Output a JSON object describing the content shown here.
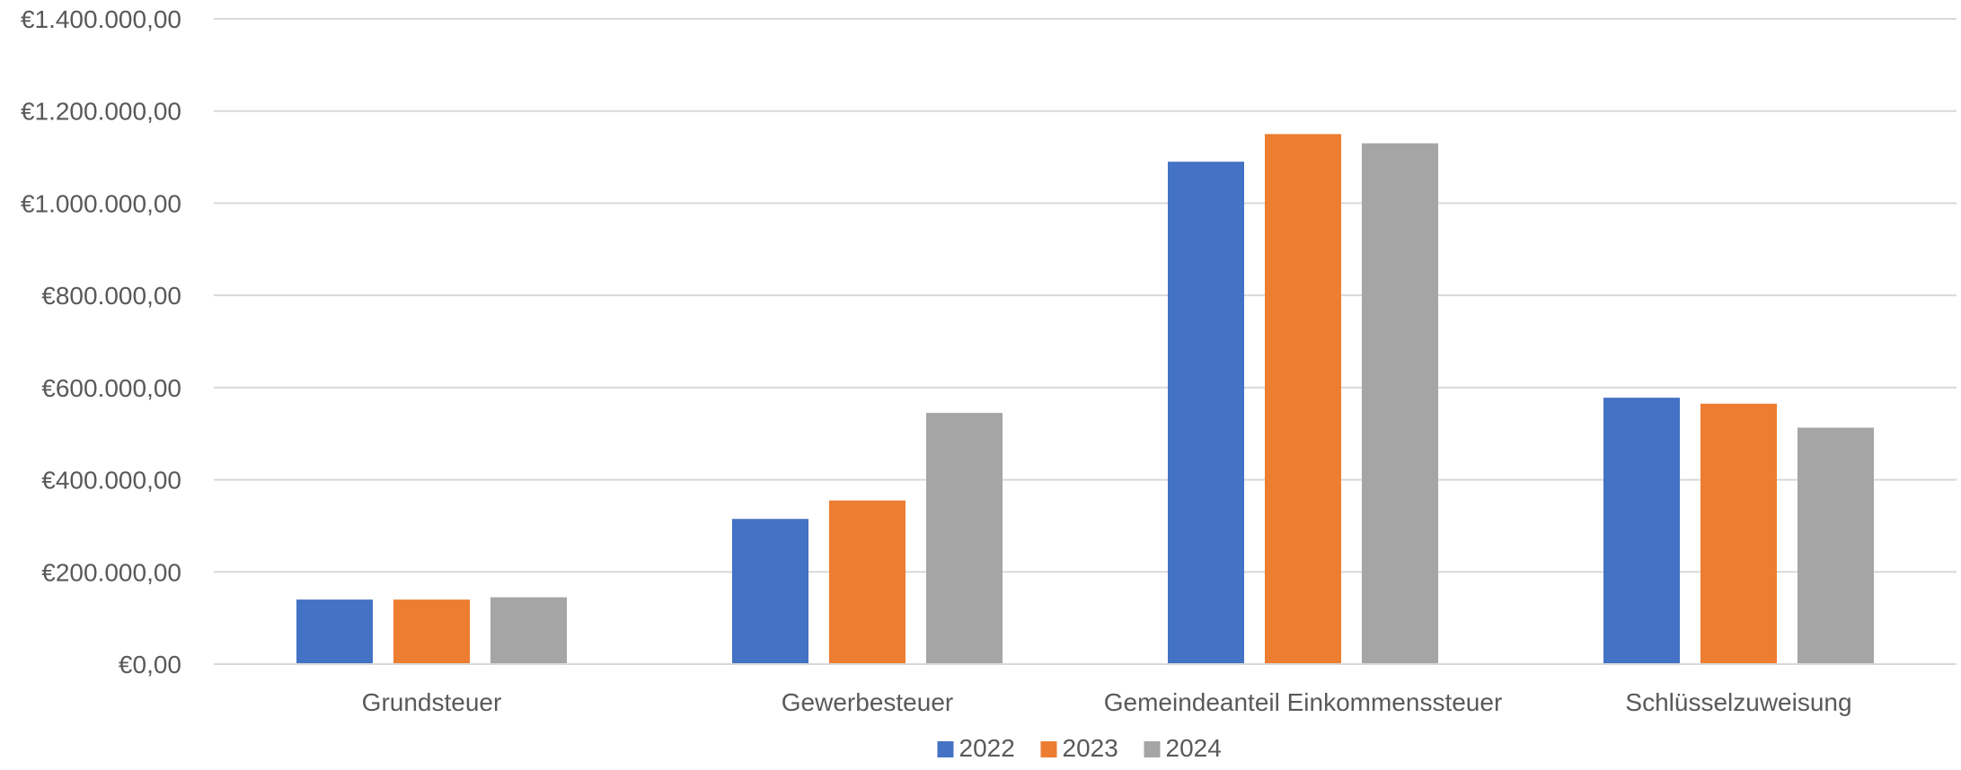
{
  "chart_data": {
    "type": "bar",
    "categories": [
      "Grundsteuer",
      "Gewerbesteuer",
      "Gemeindeanteil Einkommenssteuer",
      "Schlüsselzuweisung"
    ],
    "series": [
      {
        "name": "2022",
        "color": "#4472C4",
        "values": [
          140000,
          315000,
          1090000,
          578000
        ]
      },
      {
        "name": "2023",
        "color": "#ED7D31",
        "values": [
          140000,
          355000,
          1150000,
          565000
        ]
      },
      {
        "name": "2024",
        "color": "#A5A5A5",
        "values": [
          145000,
          545000,
          1130000,
          513000
        ]
      }
    ],
    "ylim": [
      0,
      1400000
    ],
    "yticks": [
      0,
      200000,
      400000,
      600000,
      800000,
      1000000,
      1200000,
      1400000
    ],
    "ytick_labels": [
      "€0,00",
      "€200.000,00",
      "€400.000,00",
      "€600.000,00",
      "€800.000,00",
      "€1.000.000,00",
      "€1.200.000,00",
      "€1.400.000,00"
    ],
    "grid": true,
    "legend_position": "bottom",
    "title": "",
    "xlabel": "",
    "ylabel": ""
  }
}
